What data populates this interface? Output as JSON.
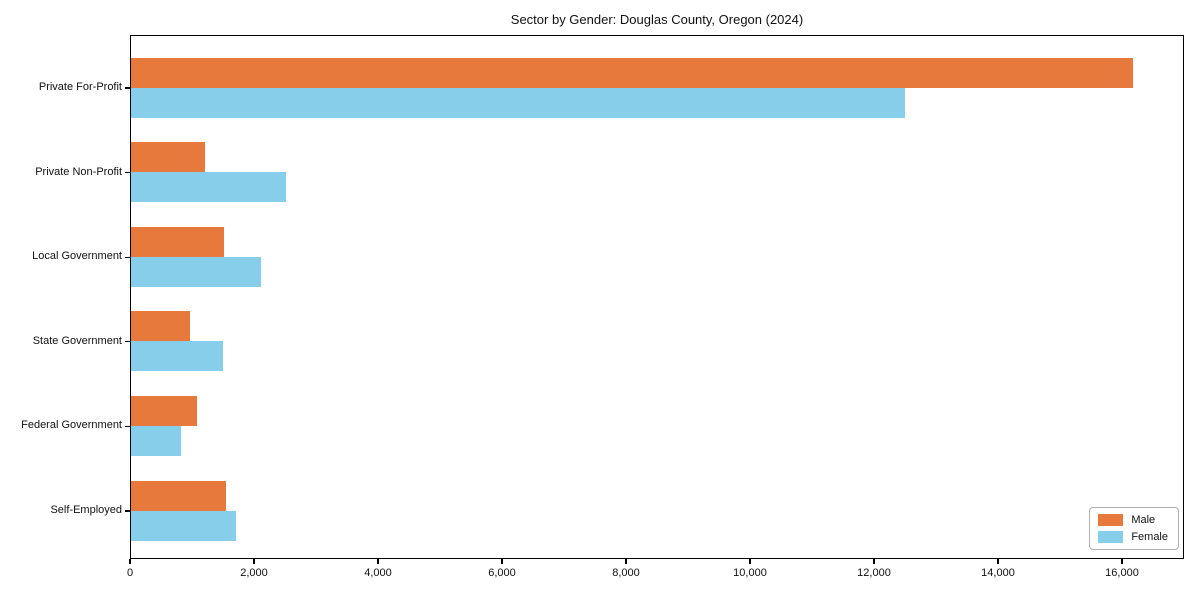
{
  "chart_data": {
    "type": "bar",
    "orientation": "horizontal",
    "title": "Sector by Gender: Douglas County, Oregon (2024)",
    "categories": [
      "Private For-Profit",
      "Private Non-Profit",
      "Local Government",
      "State Government",
      "Federal Government",
      "Self-Employed"
    ],
    "series": [
      {
        "name": "Male",
        "color": "#e8793d",
        "values": [
          16200,
          1200,
          1500,
          960,
          1060,
          1530
        ]
      },
      {
        "name": "Female",
        "color": "#87ceeb",
        "values": [
          12500,
          2500,
          2100,
          1480,
          800,
          1690
        ]
      }
    ],
    "xlabel": "",
    "ylabel": "",
    "xlim": [
      0,
      17000
    ],
    "x_ticks": [
      0,
      2000,
      4000,
      6000,
      8000,
      10000,
      12000,
      14000,
      16000
    ],
    "x_tick_labels": [
      "0",
      "2,000",
      "4,000",
      "6,000",
      "8,000",
      "10,000",
      "12,000",
      "14,000",
      "16,000"
    ],
    "grid": false,
    "legend_position": "lower right",
    "background_color": "#ffffff",
    "axis_color": "#000000"
  }
}
